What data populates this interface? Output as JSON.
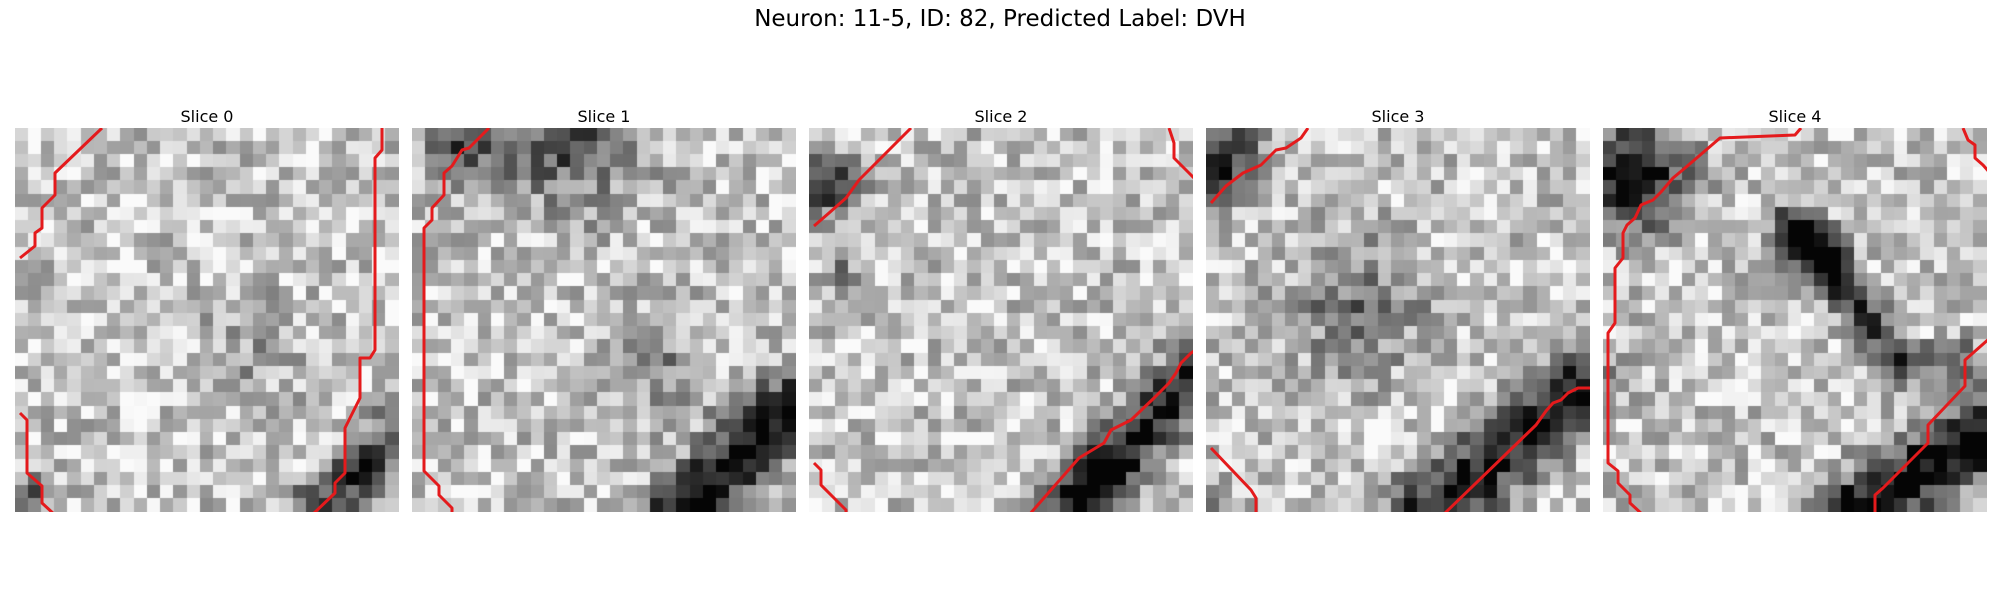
{
  "figure": {
    "suptitle": "Neuron: 11-5, ID: 82, Predicted Label: DVH"
  },
  "panels": [
    {
      "title": "Slice 0"
    },
    {
      "title": "Slice 1"
    },
    {
      "title": "Slice 2"
    },
    {
      "title": "Slice 3"
    },
    {
      "title": "Slice 4"
    }
  ],
  "colors": {
    "contour": "#e41a1c",
    "background": "#ffffff",
    "text": "#000000"
  }
}
